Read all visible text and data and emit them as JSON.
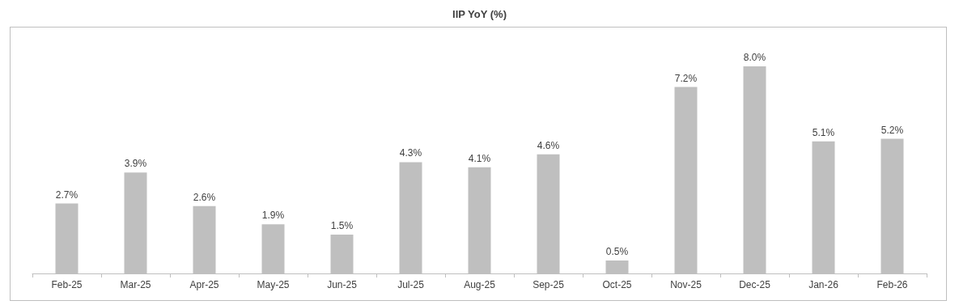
{
  "chart_data": {
    "type": "bar",
    "title": "IIP YoY (%)",
    "categories": [
      "Feb-25",
      "Mar-25",
      "Apr-25",
      "May-25",
      "Jun-25",
      "Jul-25",
      "Aug-25",
      "Sep-25",
      "Oct-25",
      "Nov-25",
      "Dec-25",
      "Jan-26",
      "Feb-26"
    ],
    "values": [
      2.7,
      3.9,
      2.6,
      1.9,
      1.5,
      4.3,
      4.1,
      4.6,
      0.5,
      7.2,
      8.0,
      5.1,
      5.2
    ],
    "value_labels": [
      "2.7%",
      "3.9%",
      "2.6%",
      "1.9%",
      "1.5%",
      "4.3%",
      "4.1%",
      "4.6%",
      "0.5%",
      "7.2%",
      "8.0%",
      "5.1%",
      "5.2%"
    ],
    "color": "#bfbfbf",
    "grid": false
  }
}
